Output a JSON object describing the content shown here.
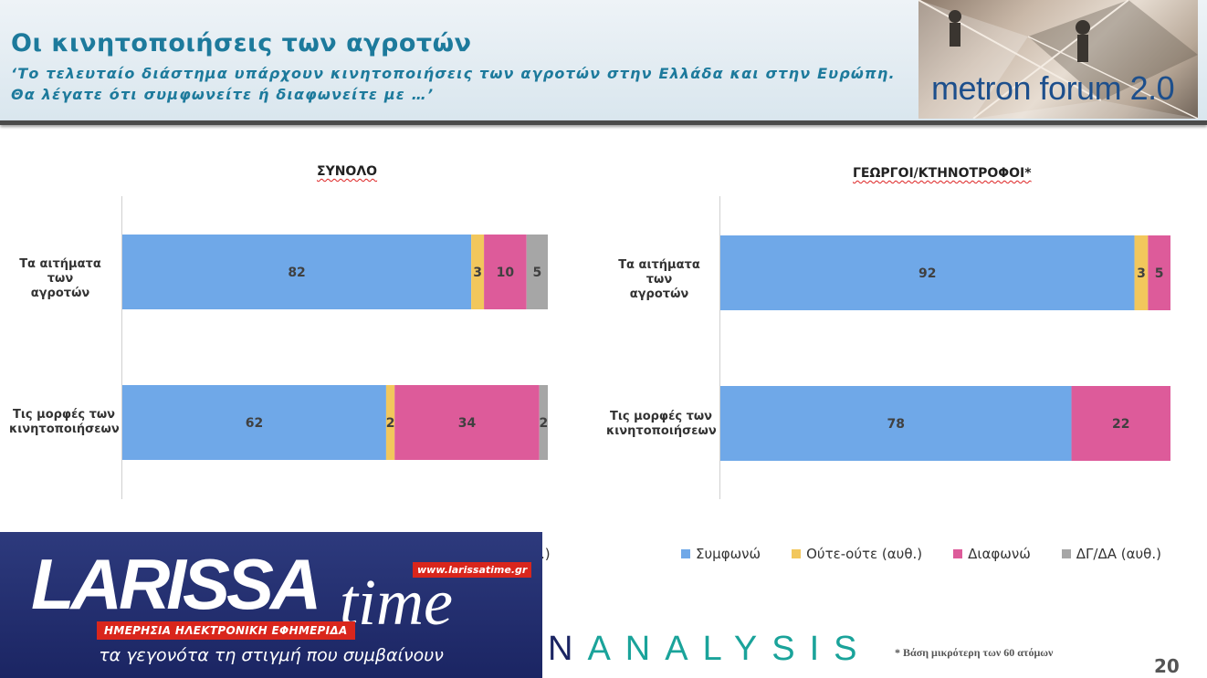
{
  "header": {
    "title": "Οι κινητοποιήσεις των αγροτών",
    "subtitle_line1": "‘Το τελευταίο διάστημα υπάρχουν κινητοποιήσεις των αγροτών στην Ελλάδα και στην Ευρώπη.",
    "subtitle_line2": "Θα λέγατε ότι συμφωνείτε ή διαφωνείτε με …’",
    "logo_text": "metron forum 2.0"
  },
  "colors": {
    "agree": "#6fa8e8",
    "neutral": "#f2c75c",
    "disagree": "#dd5b9a",
    "dk": "#a6a6a6"
  },
  "chart_data": [
    {
      "type": "bar",
      "orientation": "horizontal",
      "stacked": true,
      "title": "ΣΥΝΟΛΟ",
      "categories": [
        "Τα αιτήματα των αγροτών",
        "Τις μορφές των κινητοποιήσεων"
      ],
      "category_lines": [
        [
          "Τα αιτήματα των",
          "αγροτών"
        ],
        [
          "Τις μορφές των",
          "κινητοποιήσεων"
        ]
      ],
      "series": [
        {
          "name": "Συμφωνώ",
          "values": [
            82,
            62
          ]
        },
        {
          "name": "Ούτε-ούτε (αυθ.)",
          "values": [
            3,
            2
          ]
        },
        {
          "name": "Διαφωνώ",
          "values": [
            10,
            34
          ]
        },
        {
          "name": "ΔΓ/ΔΑ (αυθ.)",
          "values": [
            5,
            2
          ]
        }
      ],
      "xlim": [
        0,
        100
      ]
    },
    {
      "type": "bar",
      "orientation": "horizontal",
      "stacked": true,
      "title": "ΓΕΩΡΓΟΙ/ΚΤΗΝΟΤΡΟΦΟΙ*",
      "categories": [
        "Τα αιτήματα των αγροτών",
        "Τις μορφές των κινητοποιήσεων"
      ],
      "category_lines": [
        [
          "Τα αιτήματα των",
          "αγροτών"
        ],
        [
          "Τις μορφές των",
          "κινητοποιήσεων"
        ]
      ],
      "series": [
        {
          "name": "Συμφωνώ",
          "values": [
            92,
            78
          ]
        },
        {
          "name": "Ούτε-ούτε (αυθ.)",
          "values": [
            3,
            0
          ]
        },
        {
          "name": "Διαφωνώ",
          "values": [
            5,
            22
          ]
        },
        {
          "name": "ΔΓ/ΔΑ (αυθ.)",
          "values": [
            0,
            0
          ]
        }
      ],
      "xlim": [
        0,
        100
      ]
    }
  ],
  "legend": {
    "items": [
      "Συμφωνώ",
      "Ούτε-ούτε (αυθ.)",
      "Διαφωνώ",
      "ΔΓ/ΔΑ (αυθ.)"
    ],
    "cut_fragment": ".)"
  },
  "larissa": {
    "brand_big": "LARISSA",
    "brand_time": "time",
    "url": "www.larissatime.gr",
    "tagline": "ΗΜΕΡΗΣΙΑ ΗΛΕΚΤΡΟΝΙΚΗ ΕΦΗΜΕΡΙΔΑ",
    "slogan": "τα γεγονότα τη στιγμή που συμβαίνουν"
  },
  "analysis": {
    "first": "N",
    "rest": "ANALYSIS"
  },
  "footnote": "*  Βάση μικρότερη των 60 ατόμων",
  "page_number": "20"
}
